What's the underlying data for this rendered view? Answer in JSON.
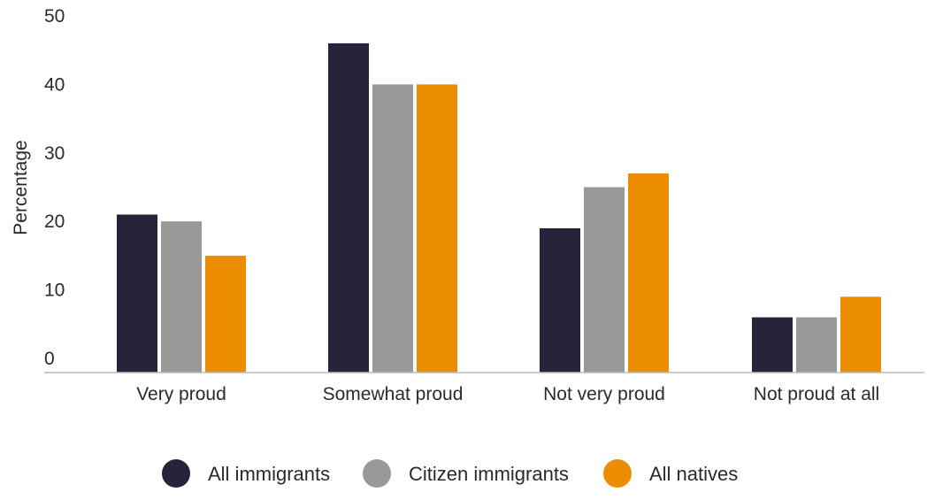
{
  "chart_data": {
    "type": "bar",
    "title": "",
    "xlabel": "",
    "ylabel": "Percentage",
    "ylim": [
      0,
      50
    ],
    "yticks": [
      "0",
      "10",
      "20",
      "30",
      "40",
      "50"
    ],
    "grid": false,
    "legend_position": "bottom",
    "categories": [
      "Very proud",
      "Somewhat proud",
      "Not very proud",
      "Not proud at all"
    ],
    "series": [
      {
        "name": "All immigrants",
        "color": "#28233a",
        "values": [
          21,
          46,
          19,
          6
        ]
      },
      {
        "name": "Citizen immigrants",
        "color": "#999999",
        "values": [
          20,
          40,
          25,
          6
        ]
      },
      {
        "name": "All natives",
        "color": "#ec8c00",
        "values": [
          15,
          40,
          27,
          9
        ]
      }
    ]
  }
}
